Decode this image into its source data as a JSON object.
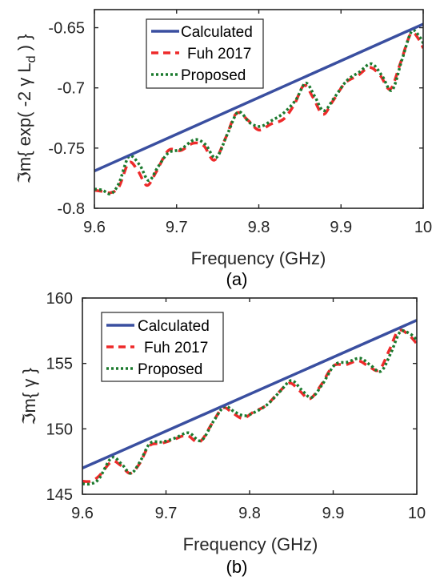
{
  "colors": {
    "calculated": "#3a4fa0",
    "fuh": "#ee2a2a",
    "proposed": "#1b7a2e"
  },
  "legend": [
    "Calculated",
    "Fuh 2017",
    "Proposed"
  ],
  "chart_data": [
    {
      "type": "line",
      "caption": "(a)",
      "xlabel": "Frequency (GHz)",
      "ylabel_prefix": "ℑm{ exp( -2 γ L",
      "ylabel_sub": "d",
      "ylabel_suffix": " ) }",
      "xlim": [
        9.6,
        10.0
      ],
      "ylim": [
        -0.8,
        -0.635
      ],
      "xticks": [
        9.6,
        9.7,
        9.8,
        9.9,
        10.0
      ],
      "xtick_labels": [
        "9.6",
        "9.7",
        "9.8",
        "9.9",
        "10"
      ],
      "yticks": [
        -0.8,
        -0.75,
        -0.7,
        -0.65
      ],
      "ytick_labels": [
        "-0.8",
        "-0.75",
        "-0.7",
        "-0.65"
      ],
      "legend_position": "top-center",
      "series": [
        {
          "name": "Calculated",
          "style": "solid",
          "x": [
            9.6,
            10.0
          ],
          "y": [
            -0.769,
            -0.647
          ]
        },
        {
          "name": "Fuh 2017",
          "style": "dashed",
          "x": [
            9.6,
            9.61,
            9.62,
            9.63,
            9.642,
            9.653,
            9.664,
            9.675,
            9.69,
            9.705,
            9.72,
            9.733,
            9.746,
            9.76,
            9.773,
            9.787,
            9.8,
            9.815,
            9.83,
            9.843,
            9.855,
            9.866,
            9.878,
            9.89,
            9.905,
            9.92,
            9.935,
            9.948,
            9.96,
            9.972,
            9.985,
            9.995,
            10.0
          ],
          "y": [
            -0.785,
            -0.786,
            -0.787,
            -0.782,
            -0.762,
            -0.769,
            -0.781,
            -0.77,
            -0.752,
            -0.752,
            -0.746,
            -0.748,
            -0.76,
            -0.741,
            -0.721,
            -0.727,
            -0.735,
            -0.73,
            -0.726,
            -0.714,
            -0.698,
            -0.708,
            -0.722,
            -0.711,
            -0.696,
            -0.69,
            -0.683,
            -0.69,
            -0.701,
            -0.68,
            -0.655,
            -0.66,
            -0.667
          ]
        },
        {
          "name": "Proposed",
          "style": "dotted",
          "x": [
            9.6,
            9.61,
            9.62,
            9.63,
            9.642,
            9.655,
            9.666,
            9.677,
            9.69,
            9.705,
            9.722,
            9.735,
            9.748,
            9.762,
            9.775,
            9.789,
            9.802,
            9.816,
            9.83,
            9.845,
            9.857,
            9.868,
            9.879,
            9.892,
            9.907,
            9.922,
            9.937,
            9.95,
            9.962,
            9.974,
            9.986,
            9.996,
            10.0
          ],
          "y": [
            -0.784,
            -0.785,
            -0.788,
            -0.779,
            -0.757,
            -0.764,
            -0.777,
            -0.766,
            -0.754,
            -0.751,
            -0.743,
            -0.747,
            -0.758,
            -0.738,
            -0.72,
            -0.729,
            -0.732,
            -0.727,
            -0.721,
            -0.71,
            -0.696,
            -0.707,
            -0.719,
            -0.708,
            -0.694,
            -0.687,
            -0.68,
            -0.69,
            -0.702,
            -0.677,
            -0.653,
            -0.658,
            -0.663
          ]
        }
      ]
    },
    {
      "type": "line",
      "caption": "(b)",
      "xlabel": "Frequency (GHz)",
      "ylabel_prefix": "ℑm{ γ }",
      "ylabel_sub": "",
      "ylabel_suffix": "",
      "xlim": [
        9.6,
        10.0
      ],
      "ylim": [
        145,
        160
      ],
      "xticks": [
        9.6,
        9.7,
        9.8,
        9.9,
        10.0
      ],
      "xtick_labels": [
        "9.6",
        "9.7",
        "9.8",
        "9.9",
        "10"
      ],
      "yticks": [
        145,
        150,
        155,
        160
      ],
      "ytick_labels": [
        "145",
        "150",
        "155",
        "160"
      ],
      "legend_position": "top-left",
      "series": [
        {
          "name": "Calculated",
          "style": "solid",
          "x": [
            9.6,
            10.0
          ],
          "y": [
            147.0,
            158.3
          ]
        },
        {
          "name": "Fuh 2017",
          "style": "dashed",
          "x": [
            9.6,
            9.61,
            9.62,
            9.635,
            9.646,
            9.657,
            9.668,
            9.68,
            9.695,
            9.71,
            9.725,
            9.74,
            9.755,
            9.768,
            9.78,
            9.792,
            9.805,
            9.82,
            9.835,
            9.848,
            9.86,
            9.872,
            9.885,
            9.9,
            9.915,
            9.93,
            9.942,
            9.955,
            9.967,
            9.978,
            9.99,
            10.0
          ],
          "y": [
            146.0,
            146.0,
            146.4,
            147.5,
            147.2,
            146.6,
            147.3,
            148.7,
            148.9,
            149.2,
            149.5,
            149.0,
            150.4,
            151.6,
            151.2,
            150.8,
            151.3,
            151.8,
            152.8,
            153.5,
            152.9,
            152.3,
            153.3,
            154.8,
            154.9,
            155.2,
            154.8,
            154.5,
            156.0,
            157.5,
            157.2,
            156.5
          ]
        },
        {
          "name": "Proposed",
          "style": "dotted",
          "x": [
            9.6,
            9.61,
            9.62,
            9.635,
            9.647,
            9.658,
            9.669,
            9.681,
            9.696,
            9.711,
            9.727,
            9.742,
            9.757,
            9.77,
            9.782,
            9.794,
            9.807,
            9.822,
            9.837,
            9.85,
            9.862,
            9.874,
            9.887,
            9.902,
            9.917,
            9.932,
            9.944,
            9.957,
            9.969,
            9.98,
            9.991,
            10.0
          ],
          "y": [
            145.8,
            145.8,
            146.2,
            147.8,
            147.3,
            146.6,
            147.5,
            148.9,
            149.0,
            149.3,
            149.7,
            149.1,
            150.6,
            151.7,
            151.3,
            151.0,
            151.3,
            151.9,
            152.9,
            153.7,
            153.0,
            152.4,
            153.4,
            154.9,
            155.1,
            155.4,
            154.9,
            154.4,
            155.8,
            157.4,
            157.3,
            156.8
          ]
        }
      ]
    }
  ]
}
